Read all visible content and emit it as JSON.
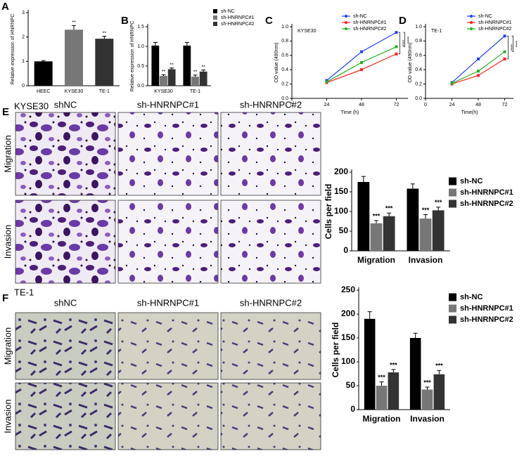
{
  "chart_data": [
    {
      "type": "bar",
      "panel": "A",
      "ylabel": "Relative expression of HNRNPC",
      "categories": [
        "HEEC",
        "KYSE30",
        "TE-1"
      ],
      "values": [
        1.0,
        2.3,
        1.93
      ],
      "errors": [
        0.03,
        0.17,
        0.1
      ],
      "colors": [
        "#000000",
        "#777777",
        "#333333"
      ],
      "significance": [
        null,
        "**",
        "**"
      ],
      "ylim": [
        0,
        3
      ],
      "yticks": [
        0,
        1,
        2,
        3
      ]
    },
    {
      "type": "bar",
      "panel": "B",
      "ylabel": "Relative expression of HNRNPC",
      "legend": "outside right",
      "categories": [
        "KYSE30",
        "TE-1"
      ],
      "series": [
        {
          "name": "sh-NC",
          "color": "#000000",
          "values": [
            1.02,
            1.02
          ],
          "errors": [
            0.08,
            0.08
          ],
          "significance": [
            null,
            null
          ]
        },
        {
          "name": "sh-HNRNPC#1",
          "color": "#777777",
          "values": [
            0.25,
            0.23
          ],
          "errors": [
            0.03,
            0.04
          ],
          "significance": [
            "**",
            "**"
          ]
        },
        {
          "name": "sh-HNRNPC#2",
          "color": "#333333",
          "values": [
            0.42,
            0.36
          ],
          "errors": [
            0.03,
            0.04
          ],
          "significance": [
            "**",
            "**"
          ]
        }
      ],
      "ylim": [
        0,
        1.5
      ],
      "yticks": [
        {
          "value": 0,
          "label": "0.0"
        },
        0.5,
        {
          "value": 1,
          "label": "1.0"
        },
        1.5
      ]
    },
    {
      "type": "line",
      "panel": "C",
      "annotation": "KYSE30",
      "xlabel": "Time (h)",
      "ylabel": "OD value (490nm)",
      "legend": "upper center",
      "x": [
        24,
        48,
        72
      ],
      "series": [
        {
          "name": "sh-NC",
          "color": "#1f3fff",
          "values": [
            0.25,
            0.65,
            0.92
          ]
        },
        {
          "name": "sh-HNRNPC#1",
          "color": "#ff2020",
          "values": [
            0.22,
            0.4,
            0.62
          ]
        },
        {
          "name": "sh-HNRNPC#2",
          "color": "#22b022",
          "values": [
            0.23,
            0.5,
            0.72
          ]
        }
      ],
      "significance": [
        "****",
        "****"
      ],
      "xlim": [
        0,
        80
      ],
      "xticks": [
        0,
        24,
        48,
        72
      ],
      "ylim": [
        0,
        1
      ],
      "yticks": [
        {
          "value": 0,
          "label": "0.0"
        },
        0.2,
        0.4,
        0.6,
        0.8,
        {
          "value": 1,
          "label": "1.0"
        }
      ]
    },
    {
      "type": "line",
      "panel": "D",
      "annotation": "TE-1",
      "xlabel": "Time(h)",
      "ylabel": "OD value (490nm)",
      "legend": "upper right",
      "x": [
        24,
        48,
        72
      ],
      "series": [
        {
          "name": "sh-NC",
          "color": "#1f3fff",
          "values": [
            0.22,
            0.55,
            0.87
          ]
        },
        {
          "name": "sh-HNRNPC#1",
          "color": "#ff2020",
          "values": [
            0.2,
            0.32,
            0.55
          ]
        },
        {
          "name": "sh-HNRNPC#2",
          "color": "#22b022",
          "values": [
            0.21,
            0.38,
            0.65
          ]
        }
      ],
      "significance": [
        "****",
        "****"
      ],
      "xlim": [
        0,
        80
      ],
      "xticks": [
        0,
        24,
        48,
        72
      ],
      "ylim": [
        0,
        1
      ],
      "yticks": [
        {
          "value": 0,
          "label": "0.0"
        },
        0.2,
        0.4,
        0.6,
        0.8,
        {
          "value": 1,
          "label": "1.0"
        }
      ]
    },
    {
      "type": "bar",
      "ylabel": "Cells per field",
      "legend": "outside right",
      "categories": [
        "Migration",
        "Invasion"
      ],
      "series": [
        {
          "name": "sh-NC",
          "color": "#000000",
          "values": [
            175,
            158
          ],
          "errors": [
            14,
            12
          ],
          "significance": [
            null,
            null
          ]
        },
        {
          "name": "sh-HNRNPC#1",
          "color": "#777777",
          "values": [
            70,
            82
          ],
          "errors": [
            7,
            10
          ],
          "significance": [
            "***",
            "***"
          ]
        },
        {
          "name": "sh-HNRNPC#2",
          "color": "#333333",
          "values": [
            88,
            103
          ],
          "errors": [
            8,
            8
          ],
          "significance": [
            "***",
            "***"
          ]
        }
      ],
      "ylim": [
        0,
        200
      ],
      "yticks": [
        0,
        50,
        100,
        150,
        200
      ]
    },
    {
      "type": "bar",
      "ylabel": "Cells per field",
      "legend": "outside right",
      "categories": [
        "Migration",
        "Invasion"
      ],
      "series": [
        {
          "name": "sh-NC",
          "color": "#000000",
          "values": [
            190,
            150
          ],
          "errors": [
            15,
            10
          ],
          "significance": [
            null,
            null
          ]
        },
        {
          "name": "sh-HNRNPC#1",
          "color": "#777777",
          "values": [
            50,
            42
          ],
          "errors": [
            8,
            5
          ],
          "significance": [
            "***",
            "***"
          ]
        },
        {
          "name": "sh-HNRNPC#2",
          "color": "#333333",
          "values": [
            78,
            74
          ],
          "errors": [
            6,
            8
          ],
          "significance": [
            "***",
            "***"
          ]
        }
      ],
      "ylim": [
        0,
        250
      ],
      "yticks": [
        0,
        50,
        100,
        150,
        200,
        250
      ]
    }
  ],
  "image_panels": [
    {
      "panel": "E",
      "title": "KYSE30",
      "columns": [
        "shNC",
        "sh-HNRNPC#1",
        "sh-HNRNPC#2"
      ],
      "rows": [
        "Migration",
        "Invasion"
      ]
    },
    {
      "panel": "F",
      "title": "TE-1",
      "columns": [
        "shNC",
        "sh-HNRNPC#1",
        "sh-HNRNPC#2"
      ],
      "rows": [
        "Migration",
        "Invasion"
      ]
    }
  ]
}
